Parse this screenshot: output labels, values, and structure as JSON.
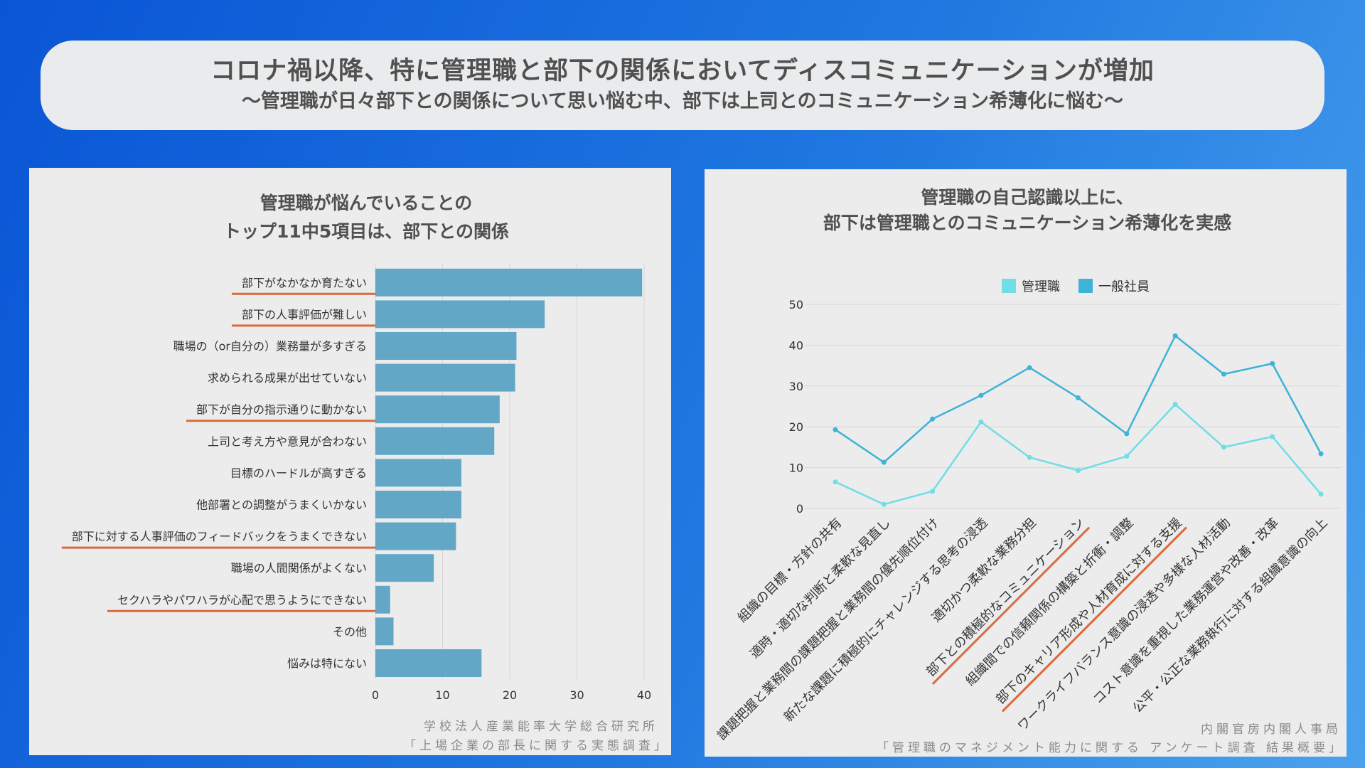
{
  "header": {
    "title": "コロナ禍以降、特に管理職と部下の関係においてディスコミュニケーションが増加",
    "subtitle": "～管理職が日々部下との関係について思い悩む中、部下は上司とのコミュニケーション希薄化に悩む～"
  },
  "colors": {
    "bar": "#62a8c6",
    "underline": "#d9693f",
    "line_manager": "#71dde6",
    "line_staff": "#3db3d8",
    "panel": "#ececec"
  },
  "chart_data": [
    {
      "type": "bar",
      "orientation": "horizontal",
      "title_lines": [
        "管理職が悩んでいることの",
        "トップ11中5項目は、部下との関係"
      ],
      "categories": [
        "部下がなかなか育たない",
        "部下の人事評価が難しい",
        "職場の（or自分の）業務量が多すぎる",
        "求められる成果が出せていない",
        "部下が自分の指示通りに動かない",
        "上司と考え方や意見が合わない",
        "目標のハードルが高すぎる",
        "他部署との調整がうまくいかない",
        "部下に対する人事評価のフィードバックをうまくできない",
        "職場の人間関係がよくない",
        "セクハラやパワハラが心配で思うようにできない",
        "その他",
        "悩みは特にない"
      ],
      "values": [
        39.7,
        25.2,
        21.0,
        20.8,
        18.5,
        17.7,
        12.8,
        12.8,
        12.0,
        8.7,
        2.2,
        2.7,
        15.8
      ],
      "highlighted": [
        true,
        true,
        false,
        false,
        true,
        false,
        false,
        false,
        true,
        false,
        true,
        false,
        false
      ],
      "xlim": [
        0,
        40
      ],
      "xticks": [
        0,
        10,
        20,
        30,
        40
      ],
      "source_lines": [
        "学校法人産業能率大学総合研究所",
        "「上場企業の部長に関する実態調査」"
      ]
    },
    {
      "type": "line",
      "title_lines": [
        "管理職の自己認識以上に、",
        "部下は管理職とのコミュニケーション希薄化を実感"
      ],
      "categories": [
        "組織の目標・方針の共有",
        "適時・適切な判断と柔軟な見直し",
        "課題把握と業務間の課題把握と業務間の優先順位付け",
        "新たな課題に積極的にチャレンジする思考の浸透",
        "適切かつ柔軟な業務分担",
        "部下との積極的なコミュニケーション",
        "組織間での信頼関係の構築と折衝・調整",
        "部下のキャリア形成や人材育成に対する支援",
        "ワークライフバランス意識の浸透や多様な人材活動",
        "コスト意識を重視した業務運営や改善・改革",
        "公平・公正な業務執行に対する組織意識の向上"
      ],
      "highlighted": [
        false,
        false,
        false,
        false,
        false,
        true,
        false,
        true,
        false,
        false,
        false
      ],
      "series": [
        {
          "name": "管理職",
          "values": [
            6.5,
            1.0,
            4.2,
            21.2,
            12.5,
            9.3,
            12.8,
            25.5,
            15.0,
            17.6,
            3.5
          ]
        },
        {
          "name": "一般社員",
          "values": [
            19.3,
            11.3,
            21.9,
            27.7,
            34.5,
            27.1,
            18.3,
            42.3,
            32.9,
            35.5,
            13.4
          ]
        }
      ],
      "ylim": [
        0,
        50
      ],
      "yticks": [
        0,
        10,
        20,
        30,
        40,
        50
      ],
      "source_lines": [
        "内閣官房内閣人事局",
        "「管理職のマネジメント能力に関する アンケート調査 結果概要」"
      ]
    }
  ]
}
